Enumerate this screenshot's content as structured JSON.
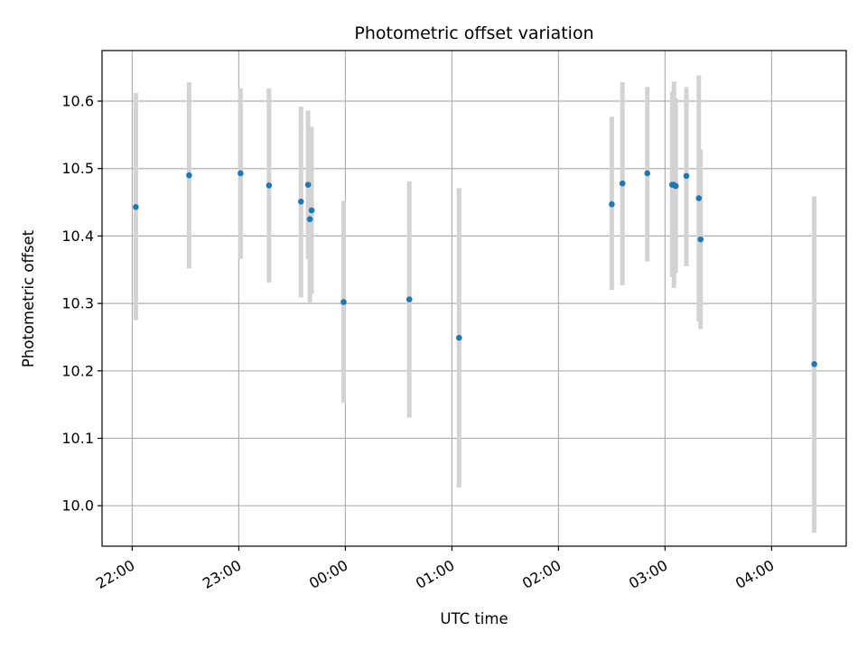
{
  "chart_data": {
    "type": "scatter",
    "title": "Photometric offset variation",
    "xlabel": "UTC time",
    "ylabel": "Photometric offset",
    "x_tick_labels": [
      "22:00",
      "23:00",
      "00:00",
      "01:00",
      "02:00",
      "03:00",
      "04:00"
    ],
    "y_tick_labels": [
      "10.0",
      "10.1",
      "10.2",
      "10.3",
      "10.4",
      "10.5",
      "10.6"
    ],
    "xlim": [
      "21:43",
      "04:42"
    ],
    "ylim": [
      9.94,
      10.675
    ],
    "grid": true,
    "series": [
      {
        "marker_color": "#1f77b4",
        "error_color": "#d3d3d3",
        "points": [
          {
            "x": "22:02",
            "y": 10.443,
            "ylo": 10.275,
            "yhi": 10.612
          },
          {
            "x": "22:32",
            "y": 10.49,
            "ylo": 10.352,
            "yhi": 10.628
          },
          {
            "x": "23:01",
            "y": 10.493,
            "ylo": 10.366,
            "yhi": 10.619
          },
          {
            "x": "23:17",
            "y": 10.475,
            "ylo": 10.331,
            "yhi": 10.619
          },
          {
            "x": "23:35",
            "y": 10.451,
            "ylo": 10.309,
            "yhi": 10.592
          },
          {
            "x": "23:39",
            "y": 10.476,
            "ylo": 10.366,
            "yhi": 10.586
          },
          {
            "x": "23:40",
            "y": 10.425,
            "ylo": 10.3,
            "yhi": 10.551
          },
          {
            "x": "23:41",
            "y": 10.438,
            "ylo": 10.314,
            "yhi": 10.562
          },
          {
            "x": "23:59",
            "y": 10.302,
            "ylo": 10.153,
            "yhi": 10.452
          },
          {
            "x": "00:36",
            "y": 10.306,
            "ylo": 10.131,
            "yhi": 10.481
          },
          {
            "x": "01:04",
            "y": 10.249,
            "ylo": 10.027,
            "yhi": 10.471
          },
          {
            "x": "02:30",
            "y": 10.447,
            "ylo": 10.32,
            "yhi": 10.577
          },
          {
            "x": "02:36",
            "y": 10.478,
            "ylo": 10.327,
            "yhi": 10.628
          },
          {
            "x": "02:50",
            "y": 10.493,
            "ylo": 10.362,
            "yhi": 10.621
          },
          {
            "x": "03:04",
            "y": 10.476,
            "ylo": 10.339,
            "yhi": 10.614
          },
          {
            "x": "03:05",
            "y": 10.476,
            "ylo": 10.323,
            "yhi": 10.629
          },
          {
            "x": "03:06",
            "y": 10.474,
            "ylo": 10.345,
            "yhi": 10.604
          },
          {
            "x": "03:12",
            "y": 10.489,
            "ylo": 10.355,
            "yhi": 10.621
          },
          {
            "x": "03:19",
            "y": 10.456,
            "ylo": 10.273,
            "yhi": 10.638
          },
          {
            "x": "03:20",
            "y": 10.395,
            "ylo": 10.262,
            "yhi": 10.528
          },
          {
            "x": "04:24",
            "y": 10.21,
            "ylo": 9.96,
            "yhi": 10.459
          }
        ]
      }
    ]
  }
}
